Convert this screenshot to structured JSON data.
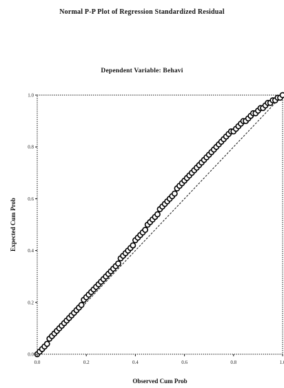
{
  "chart_data": {
    "type": "scatter",
    "title": "Normal P-P Plot of Regression Standardized Residual",
    "subtitle": "Dependent Variable: Behavi",
    "xlabel": "Observed Cum Prob",
    "ylabel": "Expected Cum Prob",
    "xlim": [
      0.0,
      1.0
    ],
    "ylim": [
      0.0,
      1.0
    ],
    "xticks": [
      "0.0",
      "0.2",
      "0.4",
      "0.6",
      "0.8",
      "1.0"
    ],
    "yticks": [
      "0.0",
      "0.2",
      "0.4",
      "0.6",
      "0.8",
      "1.0"
    ],
    "reference_line": "diagonal dashed",
    "grid": false,
    "points": [
      [
        0.0,
        0.0
      ],
      [
        0.01,
        0.01
      ],
      [
        0.02,
        0.02
      ],
      [
        0.03,
        0.03
      ],
      [
        0.04,
        0.04
      ],
      [
        0.05,
        0.06
      ],
      [
        0.06,
        0.07
      ],
      [
        0.07,
        0.08
      ],
      [
        0.08,
        0.09
      ],
      [
        0.09,
        0.1
      ],
      [
        0.1,
        0.11
      ],
      [
        0.11,
        0.12
      ],
      [
        0.12,
        0.13
      ],
      [
        0.13,
        0.14
      ],
      [
        0.14,
        0.15
      ],
      [
        0.15,
        0.16
      ],
      [
        0.16,
        0.17
      ],
      [
        0.17,
        0.18
      ],
      [
        0.18,
        0.19
      ],
      [
        0.19,
        0.21
      ],
      [
        0.2,
        0.22
      ],
      [
        0.21,
        0.23
      ],
      [
        0.22,
        0.24
      ],
      [
        0.23,
        0.25
      ],
      [
        0.24,
        0.26
      ],
      [
        0.25,
        0.27
      ],
      [
        0.26,
        0.28
      ],
      [
        0.27,
        0.29
      ],
      [
        0.28,
        0.3
      ],
      [
        0.29,
        0.31
      ],
      [
        0.3,
        0.32
      ],
      [
        0.31,
        0.33
      ],
      [
        0.32,
        0.34
      ],
      [
        0.33,
        0.35
      ],
      [
        0.34,
        0.37
      ],
      [
        0.35,
        0.38
      ],
      [
        0.36,
        0.39
      ],
      [
        0.37,
        0.4
      ],
      [
        0.38,
        0.41
      ],
      [
        0.39,
        0.42
      ],
      [
        0.4,
        0.44
      ],
      [
        0.41,
        0.45
      ],
      [
        0.42,
        0.46
      ],
      [
        0.43,
        0.47
      ],
      [
        0.44,
        0.48
      ],
      [
        0.45,
        0.5
      ],
      [
        0.46,
        0.51
      ],
      [
        0.47,
        0.52
      ],
      [
        0.48,
        0.53
      ],
      [
        0.49,
        0.54
      ],
      [
        0.5,
        0.56
      ],
      [
        0.51,
        0.57
      ],
      [
        0.52,
        0.58
      ],
      [
        0.53,
        0.59
      ],
      [
        0.54,
        0.6
      ],
      [
        0.55,
        0.61
      ],
      [
        0.56,
        0.62
      ],
      [
        0.57,
        0.64
      ],
      [
        0.58,
        0.65
      ],
      [
        0.59,
        0.66
      ],
      [
        0.6,
        0.67
      ],
      [
        0.61,
        0.68
      ],
      [
        0.62,
        0.69
      ],
      [
        0.63,
        0.7
      ],
      [
        0.64,
        0.71
      ],
      [
        0.65,
        0.72
      ],
      [
        0.66,
        0.73
      ],
      [
        0.67,
        0.74
      ],
      [
        0.68,
        0.75
      ],
      [
        0.69,
        0.76
      ],
      [
        0.7,
        0.77
      ],
      [
        0.71,
        0.78
      ],
      [
        0.72,
        0.79
      ],
      [
        0.73,
        0.8
      ],
      [
        0.74,
        0.81
      ],
      [
        0.75,
        0.82
      ],
      [
        0.76,
        0.83
      ],
      [
        0.77,
        0.84
      ],
      [
        0.78,
        0.85
      ],
      [
        0.79,
        0.86
      ],
      [
        0.8,
        0.86
      ],
      [
        0.81,
        0.87
      ],
      [
        0.82,
        0.88
      ],
      [
        0.83,
        0.89
      ],
      [
        0.84,
        0.9
      ],
      [
        0.85,
        0.9
      ],
      [
        0.86,
        0.91
      ],
      [
        0.87,
        0.92
      ],
      [
        0.88,
        0.93
      ],
      [
        0.89,
        0.93
      ],
      [
        0.9,
        0.94
      ],
      [
        0.91,
        0.95
      ],
      [
        0.92,
        0.95
      ],
      [
        0.93,
        0.96
      ],
      [
        0.94,
        0.97
      ],
      [
        0.95,
        0.97
      ],
      [
        0.96,
        0.98
      ],
      [
        0.97,
        0.98
      ],
      [
        0.98,
        0.99
      ],
      [
        0.99,
        0.99
      ],
      [
        1.0,
        1.0
      ]
    ]
  }
}
